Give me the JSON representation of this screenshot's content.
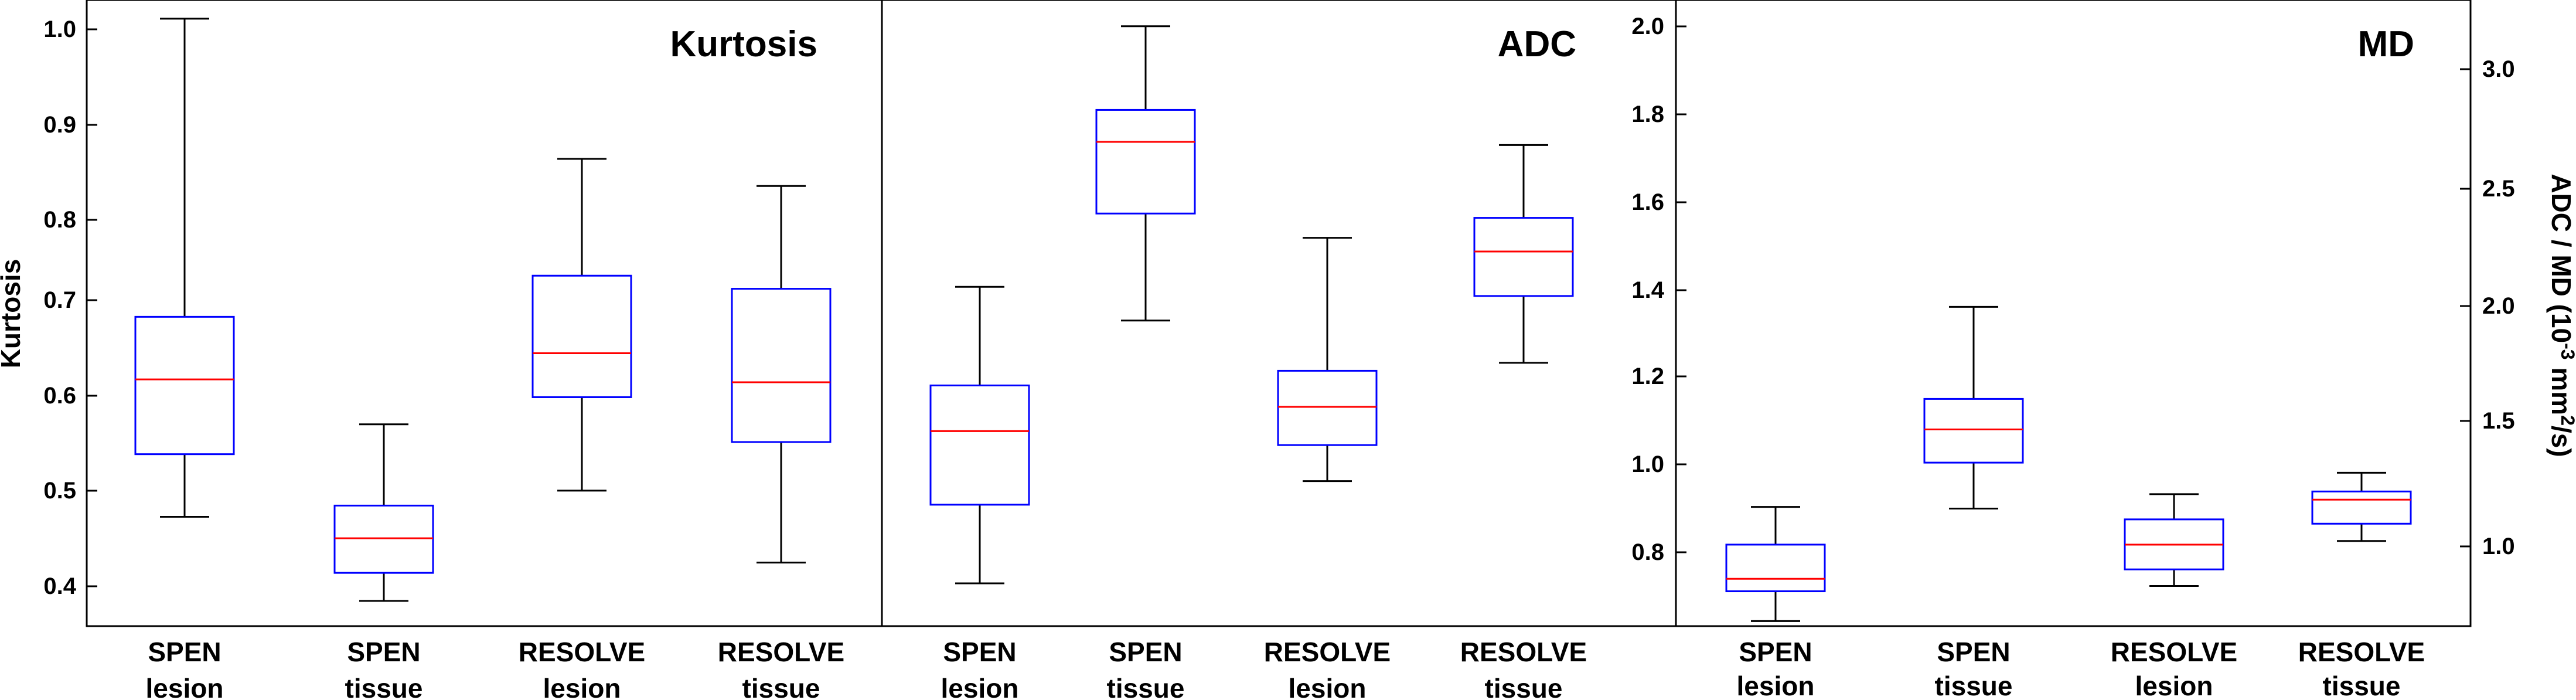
{
  "chart_data": [
    {
      "type": "box",
      "title": "Kurtosis",
      "ylabel": "Kurtosis",
      "ylim": [
        0.355,
        1.025
      ],
      "yticks": [
        0.4,
        0.5,
        0.6,
        0.7,
        0.8,
        0.9,
        1.0
      ],
      "ytick_labels": [
        "0.4",
        "0.5",
        "0.6",
        "0.7",
        "0.8",
        "0.9",
        "1.0"
      ],
      "categories": [
        [
          "SPEN",
          "lesion"
        ],
        [
          "SPEN",
          "tissue"
        ],
        [
          "RESOLVE",
          "lesion"
        ],
        [
          "RESOLVE",
          "tissue"
        ]
      ],
      "boxes": [
        {
          "whisker_low": 0.472,
          "q1": 0.539,
          "median": 0.619,
          "q3": 0.686,
          "whisker_high": 1.005
        },
        {
          "whisker_low": 0.382,
          "q1": 0.412,
          "median": 0.449,
          "q3": 0.484,
          "whisker_high": 0.571
        },
        {
          "whisker_low": 0.5,
          "q1": 0.6,
          "median": 0.647,
          "q3": 0.73,
          "whisker_high": 0.855
        },
        {
          "whisker_low": 0.423,
          "q1": 0.552,
          "median": 0.616,
          "q3": 0.716,
          "whisker_high": 0.826
        }
      ]
    },
    {
      "type": "box",
      "title": "ADC",
      "ylabel": "",
      "ylim": [
        0.669,
        3.273
      ],
      "categories": [
        [
          "SPEN",
          "lesion"
        ],
        [
          "SPEN",
          "tissue"
        ],
        [
          "RESOLVE",
          "lesion"
        ],
        [
          "RESOLVE",
          "tissue"
        ]
      ],
      "boxes": [
        {
          "whisker_low": 0.847,
          "q1": 1.174,
          "median": 1.48,
          "q3": 1.67,
          "whisker_high": 2.08
        },
        {
          "whisker_low": 1.94,
          "q1": 2.385,
          "median": 2.683,
          "q3": 2.816,
          "whisker_high": 3.164
        },
        {
          "whisker_low": 1.272,
          "q1": 1.422,
          "median": 1.581,
          "q3": 1.731,
          "whisker_high": 2.284
        },
        {
          "whisker_low": 1.764,
          "q1": 2.042,
          "median": 2.227,
          "q3": 2.367,
          "whisker_high": 2.67
        }
      ]
    },
    {
      "type": "box",
      "title": "MD",
      "ylabel": "ADC / MD (10⁻³ mm²/s)",
      "ylim": [
        0.669,
        3.273
      ],
      "left_axis": {
        "ticks": [
          0.8,
          1.0,
          1.2,
          1.4,
          1.6,
          1.8,
          2.0
        ],
        "tick_labels": [
          "0.8",
          "1.0",
          "1.2",
          "1.4",
          "1.6",
          "1.8",
          "2.0"
        ]
      },
      "right_axis": {
        "ticks": [
          1.0,
          1.5,
          2.0,
          2.5,
          3.0
        ],
        "tick_labels": [
          "1.0",
          "1.5",
          "2.0",
          "2.5",
          "3.0"
        ]
      },
      "categories": [
        [
          "SPEN",
          "lesion"
        ],
        [
          "SPEN",
          "tissue"
        ],
        [
          "RESOLVE",
          "lesion"
        ],
        [
          "RESOLVE",
          "tissue"
        ]
      ],
      "boxes": [
        {
          "whisker_low": 0.69,
          "q1": 0.814,
          "median": 0.866,
          "q3": 1.008,
          "whisker_high": 1.165
        },
        {
          "whisker_low": 1.158,
          "q1": 1.349,
          "median": 1.487,
          "q3": 1.614,
          "whisker_high": 1.997
        },
        {
          "whisker_low": 0.836,
          "q1": 0.905,
          "median": 1.008,
          "q3": 1.113,
          "whisker_high": 1.218
        },
        {
          "whisker_low": 1.023,
          "q1": 1.095,
          "median": 1.195,
          "q3": 1.229,
          "whisker_high": 1.307
        }
      ]
    }
  ],
  "shared_ylabel_parts": {
    "prefix": "ADC / MD (10",
    "sup1": "-3",
    "mid": " mm",
    "sup2": "2",
    "suffix": "/s)"
  },
  "colors": {
    "box": "#0000ff",
    "median": "#ff0000",
    "whisker": "#000000",
    "axis": "#000000"
  }
}
